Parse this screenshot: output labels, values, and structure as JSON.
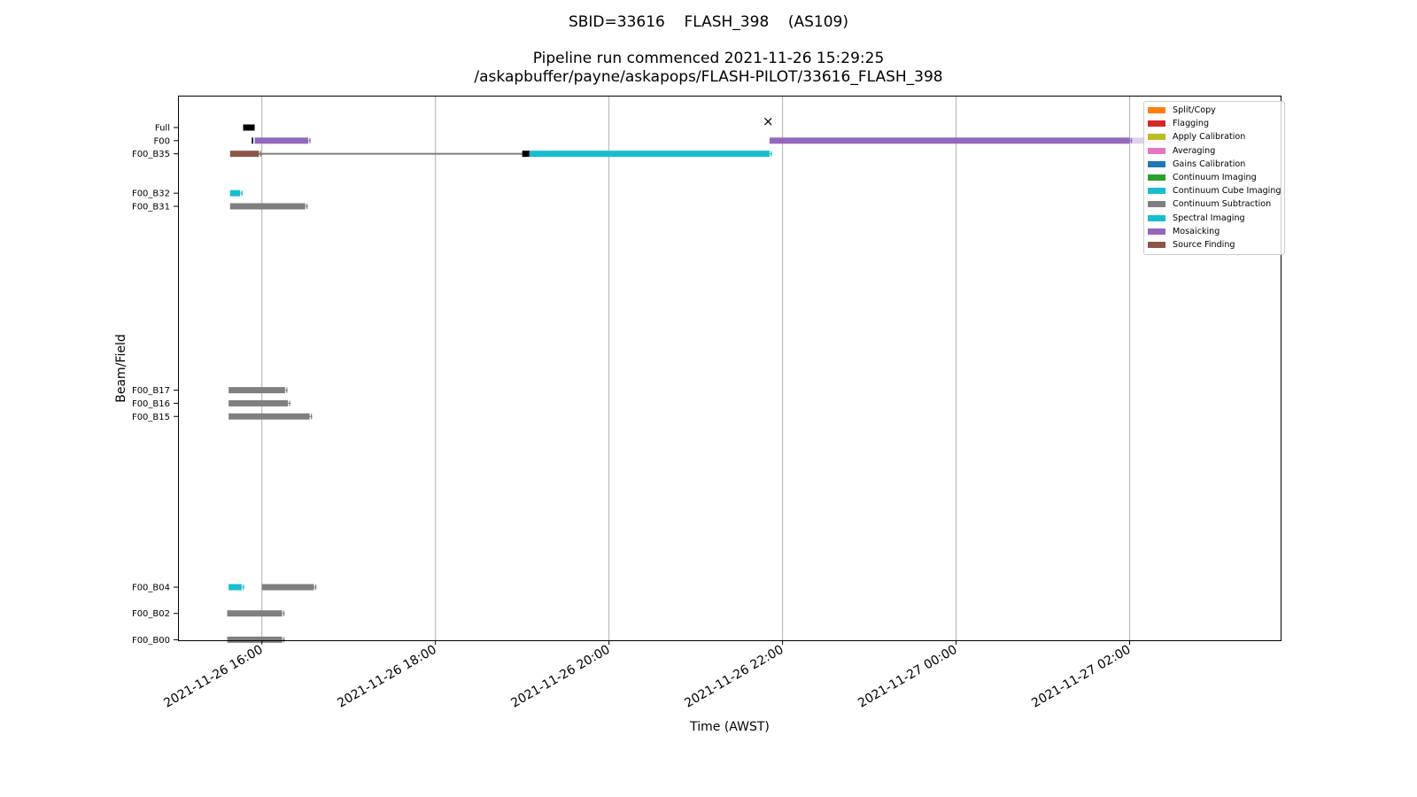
{
  "titles": {
    "line1": "SBID=33616    FLASH_398    (AS109)",
    "line2": "Pipeline run commenced 2021-11-26 15:29:25",
    "line3": "/askapbuffer/payne/askapops/FLASH-PILOT/33616_FLASH_398"
  },
  "chart_data": {
    "type": "gantt",
    "xlabel": "Time (AWST)",
    "ylabel": "Beam/Field",
    "x_ticks": [
      "2021-11-26 16:00",
      "2021-11-26 18:00",
      "2021-11-26 20:00",
      "2021-11-26 22:00",
      "2021-11-27 00:00",
      "2021-11-27 02:00"
    ],
    "xlim": [
      "2021-11-26 15:02",
      "2021-11-27 03:45"
    ],
    "grid": "vertical",
    "legend_placement": "top-right",
    "y_categories": [
      "Full",
      "F00",
      "F00_B35",
      "F00_B32",
      "F00_B31",
      "F00_B17",
      "F00_B16",
      "F00_B15",
      "F00_B04",
      "F00_B02",
      "F00_B00"
    ],
    "y_positions": [
      0,
      1,
      2,
      5,
      6,
      20,
      21,
      22,
      35,
      37,
      39
    ],
    "stages": [
      {
        "name": "Split/Copy",
        "color": "#ff7f0e"
      },
      {
        "name": "Flagging",
        "color": "#d62728"
      },
      {
        "name": "Apply Calibration",
        "color": "#bcbd22"
      },
      {
        "name": "Averaging",
        "color": "#e377c2"
      },
      {
        "name": "Gains Calibration",
        "color": "#1f77b4"
      },
      {
        "name": "Continuum Imaging",
        "color": "#2ca02c"
      },
      {
        "name": "Continuum Cube Imaging",
        "color": "#17becf"
      },
      {
        "name": "Continuum Subtraction",
        "color": "#7f7f7f"
      },
      {
        "name": "Spectral Imaging",
        "color": "#17becf"
      },
      {
        "name": "Mosaicking",
        "color": "#9467bd"
      },
      {
        "name": "Source Finding",
        "color": "#8c564b"
      }
    ],
    "bars": [
      {
        "row": "Full",
        "stage": "Other",
        "color": "#000000",
        "start": "2021-11-26 15:47",
        "end": "2021-11-26 15:55"
      },
      {
        "row": "F00",
        "stage": "Other",
        "color": "#000000",
        "start": "2021-11-26 15:53",
        "end": "2021-11-26 15:54"
      },
      {
        "row": "F00",
        "stage": "Mosaicking",
        "start": "2021-11-26 15:55",
        "end": "2021-11-26 16:32"
      },
      {
        "row": "F00",
        "stage": "Mosaicking",
        "start": "2021-11-26 21:51",
        "end": "2021-11-27 02:00"
      },
      {
        "row": "F00",
        "stage": "Mosaicking",
        "start": "2021-11-27 02:00",
        "end": "2021-11-27 02:45",
        "faded": true
      },
      {
        "row": "F00_B35",
        "stage": "Source Finding",
        "start": "2021-11-26 15:38",
        "end": "2021-11-26 15:58"
      },
      {
        "row": "F00_B35",
        "stage": "Other",
        "color": "#7f7f7f",
        "thin": true,
        "start": "2021-11-26 15:58",
        "end": "2021-11-26 19:05"
      },
      {
        "row": "F00_B35",
        "stage": "Other",
        "color": "#000000",
        "start": "2021-11-26 19:00",
        "end": "2021-11-26 19:05"
      },
      {
        "row": "F00_B35",
        "stage": "Spectral Imaging",
        "start": "2021-11-26 19:05",
        "end": "2021-11-26 21:51"
      },
      {
        "row": "F00_B32",
        "stage": "Spectral Imaging",
        "start": "2021-11-26 15:38",
        "end": "2021-11-26 15:45"
      },
      {
        "row": "F00_B31",
        "stage": "Continuum Subtraction",
        "start": "2021-11-26 15:38",
        "end": "2021-11-26 16:30"
      },
      {
        "row": "F00_B17",
        "stage": "Continuum Subtraction",
        "start": "2021-11-26 15:37",
        "end": "2021-11-26 16:16"
      },
      {
        "row": "F00_B16",
        "stage": "Continuum Subtraction",
        "start": "2021-11-26 15:37",
        "end": "2021-11-26 16:18"
      },
      {
        "row": "F00_B15",
        "stage": "Continuum Subtraction",
        "start": "2021-11-26 15:37",
        "end": "2021-11-26 16:33"
      },
      {
        "row": "F00_B04",
        "stage": "Spectral Imaging",
        "start": "2021-11-26 15:37",
        "end": "2021-11-26 15:46"
      },
      {
        "row": "F00_B04",
        "stage": "Continuum Subtraction",
        "start": "2021-11-26 16:00",
        "end": "2021-11-26 16:36"
      },
      {
        "row": "F00_B02",
        "stage": "Continuum Subtraction",
        "start": "2021-11-26 15:36",
        "end": "2021-11-26 16:14"
      },
      {
        "row": "F00_B00",
        "stage": "Continuum Subtraction",
        "start": "2021-11-26 15:36",
        "end": "2021-11-26 16:14"
      }
    ],
    "failures": [
      {
        "row": "F00",
        "time": "2021-11-26 21:50",
        "marker": "×"
      }
    ]
  }
}
